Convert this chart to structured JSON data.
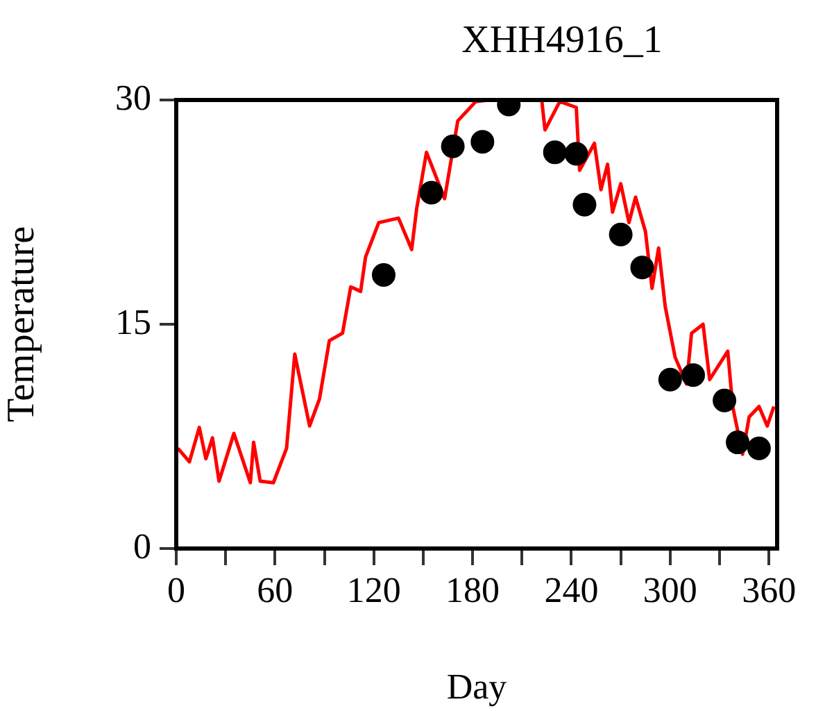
{
  "chart_data": {
    "type": "line",
    "title": "XHH4916_1",
    "xlabel": "Day",
    "ylabel": "Temperature",
    "xlim": [
      0,
      365
    ],
    "ylim": [
      0,
      30
    ],
    "xticks": [
      0,
      {
        "value": 30,
        "label": null
      },
      60,
      {
        "value": 90,
        "label": null
      },
      120,
      {
        "value": 150,
        "label": null
      },
      180,
      {
        "value": 210,
        "label": null
      },
      240,
      {
        "value": 270,
        "label": null
      },
      300,
      {
        "value": 330,
        "label": null
      },
      360
    ],
    "yticks": [
      0,
      15,
      30
    ],
    "grid": false,
    "legend": false,
    "series": [
      {
        "type": "line",
        "color": "#ff0000",
        "marker": "none",
        "line_style": "solid",
        "x": [
          1,
          8,
          14,
          18,
          22,
          26,
          35,
          45,
          47,
          51,
          59,
          67,
          72,
          81,
          87,
          93,
          101,
          106,
          112,
          115,
          123,
          135,
          143,
          146,
          152,
          163,
          171,
          182,
          190,
          205,
          222,
          224,
          233,
          243,
          245,
          254,
          258,
          262,
          265,
          270,
          275,
          279,
          285,
          289,
          293,
          297,
          303,
          310,
          313,
          320,
          324,
          335,
          338,
          344,
          348,
          354,
          359,
          363
        ],
        "values": [
          6.7,
          5.8,
          8.1,
          6.0,
          7.4,
          4.5,
          7.7,
          4.4,
          7.1,
          4.5,
          4.4,
          6.7,
          13.0,
          8.2,
          10.0,
          13.9,
          14.4,
          17.5,
          17.2,
          19.5,
          21.8,
          22.1,
          20.0,
          22.7,
          26.5,
          23.4,
          28.6,
          29.9,
          30,
          null,
          30,
          28.0,
          29.9,
          29.5,
          25.3,
          27.1,
          24.0,
          25.7,
          22.5,
          24.4,
          21.8,
          23.5,
          21.2,
          17.4,
          20.1,
          16.2,
          12.8,
          11.0,
          14.4,
          15.0,
          11.3,
          13.2,
          9.5,
          6.3,
          8.8,
          9.5,
          8.2,
          9.5
        ]
      },
      {
        "type": "scatter",
        "color": "#000000",
        "marker": "circle",
        "x": [
          126,
          155,
          168,
          186,
          202,
          230,
          243,
          248,
          270,
          283,
          300,
          314,
          333,
          341,
          354
        ],
        "values": [
          18.3,
          23.8,
          26.9,
          27.2,
          29.7,
          26.5,
          26.4,
          23.0,
          21.0,
          18.8,
          11.3,
          11.6,
          9.9,
          7.1,
          6.7
        ]
      }
    ]
  }
}
